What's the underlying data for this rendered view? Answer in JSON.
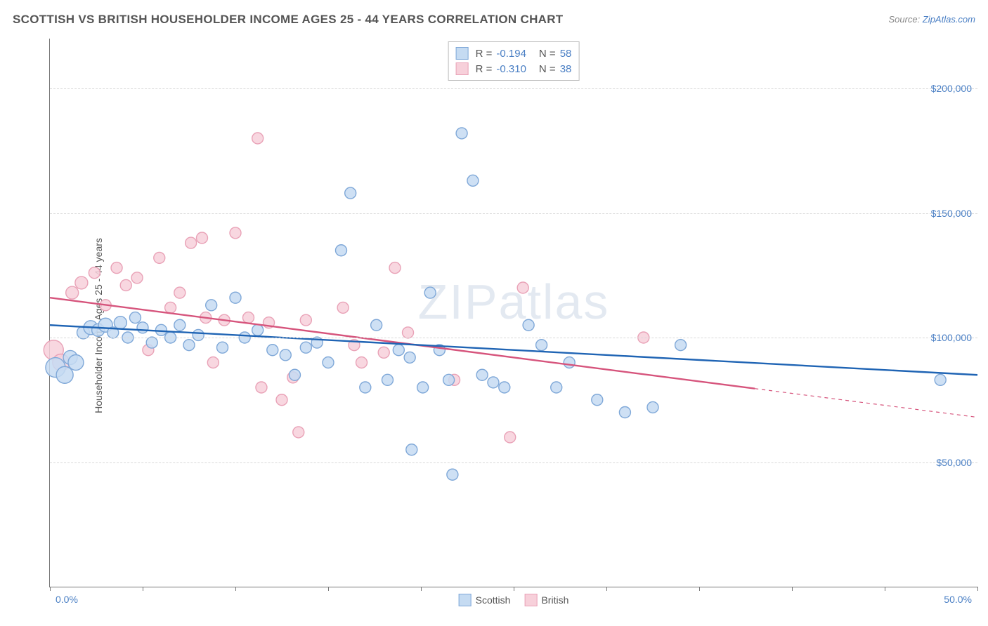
{
  "meta": {
    "title": "SCOTTISH VS BRITISH HOUSEHOLDER INCOME AGES 25 - 44 YEARS CORRELATION CHART",
    "source_prefix": "Source: ",
    "source_name": "ZipAtlas.com",
    "watermark": "ZIPatlas"
  },
  "chart": {
    "type": "scatter",
    "ylabel": "Householder Income Ages 25 - 44 years",
    "xlim": [
      0,
      50
    ],
    "ylim": [
      0,
      220000
    ],
    "xtick_positions": [
      0,
      5,
      10,
      15,
      20,
      25,
      30,
      35,
      40,
      45,
      50
    ],
    "xtick_labels": {
      "0": "0.0%",
      "50": "50.0%"
    },
    "ytick_positions": [
      50000,
      100000,
      150000,
      200000
    ],
    "ytick_labels": [
      "$50,000",
      "$100,000",
      "$150,000",
      "$200,000"
    ],
    "grid_color": "#d8d8d8",
    "background_color": "#ffffff",
    "axis_color": "#777777",
    "label_color": "#4a7fc4",
    "marker_radius": 8,
    "marker_stroke_width": 1.4,
    "trend_line_width": 2.4,
    "series": {
      "scottish": {
        "label": "Scottish",
        "fill": "#c5dbf2",
        "stroke": "#7fa8d8",
        "line_color": "#1f64b4",
        "R": "-0.194",
        "N": "58",
        "trend": {
          "x1": 0,
          "y1": 105000,
          "x2": 50,
          "y2": 85000,
          "dashed_from_x": null
        },
        "points": [
          {
            "x": 0.3,
            "y": 88000,
            "r": 14
          },
          {
            "x": 0.8,
            "y": 85000,
            "r": 12
          },
          {
            "x": 1.1,
            "y": 92000,
            "r": 10
          },
          {
            "x": 1.4,
            "y": 90000,
            "r": 11
          },
          {
            "x": 1.8,
            "y": 102000,
            "r": 9
          },
          {
            "x": 2.2,
            "y": 104000,
            "r": 10
          },
          {
            "x": 2.6,
            "y": 103000,
            "r": 9
          },
          {
            "x": 3.0,
            "y": 105000,
            "r": 10
          },
          {
            "x": 3.4,
            "y": 102000,
            "r": 8
          },
          {
            "x": 3.8,
            "y": 106000,
            "r": 9
          },
          {
            "x": 4.2,
            "y": 100000,
            "r": 8
          },
          {
            "x": 4.6,
            "y": 108000,
            "r": 8
          },
          {
            "x": 5.0,
            "y": 104000,
            "r": 8
          },
          {
            "x": 5.5,
            "y": 98000,
            "r": 8
          },
          {
            "x": 6.0,
            "y": 103000,
            "r": 8
          },
          {
            "x": 6.5,
            "y": 100000,
            "r": 8
          },
          {
            "x": 7.0,
            "y": 105000,
            "r": 8
          },
          {
            "x": 7.5,
            "y": 97000,
            "r": 8
          },
          {
            "x": 8.0,
            "y": 101000,
            "r": 8
          },
          {
            "x": 8.7,
            "y": 113000,
            "r": 8
          },
          {
            "x": 9.3,
            "y": 96000,
            "r": 8
          },
          {
            "x": 10.0,
            "y": 116000,
            "r": 8
          },
          {
            "x": 10.5,
            "y": 100000,
            "r": 8
          },
          {
            "x": 11.2,
            "y": 103000,
            "r": 8
          },
          {
            "x": 12.0,
            "y": 95000,
            "r": 8
          },
          {
            "x": 12.7,
            "y": 93000,
            "r": 8
          },
          {
            "x": 13.2,
            "y": 85000,
            "r": 8
          },
          {
            "x": 13.8,
            "y": 96000,
            "r": 8
          },
          {
            "x": 14.4,
            "y": 98000,
            "r": 8
          },
          {
            "x": 15.0,
            "y": 90000,
            "r": 8
          },
          {
            "x": 15.7,
            "y": 135000,
            "r": 8
          },
          {
            "x": 16.2,
            "y": 158000,
            "r": 8
          },
          {
            "x": 17.0,
            "y": 80000,
            "r": 8
          },
          {
            "x": 17.6,
            "y": 105000,
            "r": 8
          },
          {
            "x": 18.2,
            "y": 83000,
            "r": 8
          },
          {
            "x": 18.8,
            "y": 95000,
            "r": 8
          },
          {
            "x": 19.4,
            "y": 92000,
            "r": 8
          },
          {
            "x": 19.5,
            "y": 55000,
            "r": 8
          },
          {
            "x": 20.1,
            "y": 80000,
            "r": 8
          },
          {
            "x": 20.5,
            "y": 118000,
            "r": 8
          },
          {
            "x": 21.0,
            "y": 95000,
            "r": 8
          },
          {
            "x": 21.5,
            "y": 83000,
            "r": 8
          },
          {
            "x": 21.7,
            "y": 45000,
            "r": 8
          },
          {
            "x": 22.2,
            "y": 182000,
            "r": 8
          },
          {
            "x": 22.8,
            "y": 163000,
            "r": 8
          },
          {
            "x": 23.3,
            "y": 85000,
            "r": 8
          },
          {
            "x": 23.9,
            "y": 82000,
            "r": 8
          },
          {
            "x": 24.5,
            "y": 80000,
            "r": 8
          },
          {
            "x": 25.8,
            "y": 105000,
            "r": 8
          },
          {
            "x": 26.5,
            "y": 97000,
            "r": 8
          },
          {
            "x": 27.3,
            "y": 80000,
            "r": 8
          },
          {
            "x": 28.0,
            "y": 90000,
            "r": 8
          },
          {
            "x": 29.5,
            "y": 75000,
            "r": 8
          },
          {
            "x": 31.0,
            "y": 70000,
            "r": 8
          },
          {
            "x": 32.5,
            "y": 72000,
            "r": 8
          },
          {
            "x": 34.0,
            "y": 97000,
            "r": 8
          },
          {
            "x": 48.0,
            "y": 83000,
            "r": 8
          }
        ]
      },
      "british": {
        "label": "British",
        "fill": "#f7d0da",
        "stroke": "#e9a2b7",
        "line_color": "#d6547c",
        "R": "-0.310",
        "N": "38",
        "trend": {
          "x1": 0,
          "y1": 116000,
          "x2": 50,
          "y2": 68000,
          "dashed_from_x": 38
        },
        "points": [
          {
            "x": 0.2,
            "y": 95000,
            "r": 14
          },
          {
            "x": 0.6,
            "y": 90000,
            "r": 12
          },
          {
            "x": 1.2,
            "y": 118000,
            "r": 9
          },
          {
            "x": 1.7,
            "y": 122000,
            "r": 9
          },
          {
            "x": 2.4,
            "y": 126000,
            "r": 8
          },
          {
            "x": 3.0,
            "y": 113000,
            "r": 8
          },
          {
            "x": 3.6,
            "y": 128000,
            "r": 8
          },
          {
            "x": 4.1,
            "y": 121000,
            "r": 8
          },
          {
            "x": 4.7,
            "y": 124000,
            "r": 8
          },
          {
            "x": 5.3,
            "y": 95000,
            "r": 8
          },
          {
            "x": 5.9,
            "y": 132000,
            "r": 8
          },
          {
            "x": 6.5,
            "y": 112000,
            "r": 8
          },
          {
            "x": 7.0,
            "y": 118000,
            "r": 8
          },
          {
            "x": 7.6,
            "y": 138000,
            "r": 8
          },
          {
            "x": 8.2,
            "y": 140000,
            "r": 8
          },
          {
            "x": 8.4,
            "y": 108000,
            "r": 8
          },
          {
            "x": 8.8,
            "y": 90000,
            "r": 8
          },
          {
            "x": 9.4,
            "y": 107000,
            "r": 8
          },
          {
            "x": 10.0,
            "y": 142000,
            "r": 8
          },
          {
            "x": 10.7,
            "y": 108000,
            "r": 8
          },
          {
            "x": 11.2,
            "y": 180000,
            "r": 8
          },
          {
            "x": 11.4,
            "y": 80000,
            "r": 8
          },
          {
            "x": 11.8,
            "y": 106000,
            "r": 8
          },
          {
            "x": 12.5,
            "y": 75000,
            "r": 8
          },
          {
            "x": 13.1,
            "y": 84000,
            "r": 8
          },
          {
            "x": 13.4,
            "y": 62000,
            "r": 8
          },
          {
            "x": 13.8,
            "y": 107000,
            "r": 8
          },
          {
            "x": 15.8,
            "y": 112000,
            "r": 8
          },
          {
            "x": 16.4,
            "y": 97000,
            "r": 8
          },
          {
            "x": 16.8,
            "y": 90000,
            "r": 8
          },
          {
            "x": 18.0,
            "y": 94000,
            "r": 8
          },
          {
            "x": 18.6,
            "y": 128000,
            "r": 8
          },
          {
            "x": 19.3,
            "y": 102000,
            "r": 8
          },
          {
            "x": 21.8,
            "y": 83000,
            "r": 8
          },
          {
            "x": 24.8,
            "y": 60000,
            "r": 8
          },
          {
            "x": 25.5,
            "y": 120000,
            "r": 8
          },
          {
            "x": 32.0,
            "y": 100000,
            "r": 8
          }
        ]
      }
    },
    "legend_top": [
      {
        "series": "scottish",
        "r_label": "R =",
        "n_label": "N ="
      },
      {
        "series": "british",
        "r_label": "R =",
        "n_label": "N ="
      }
    ]
  }
}
